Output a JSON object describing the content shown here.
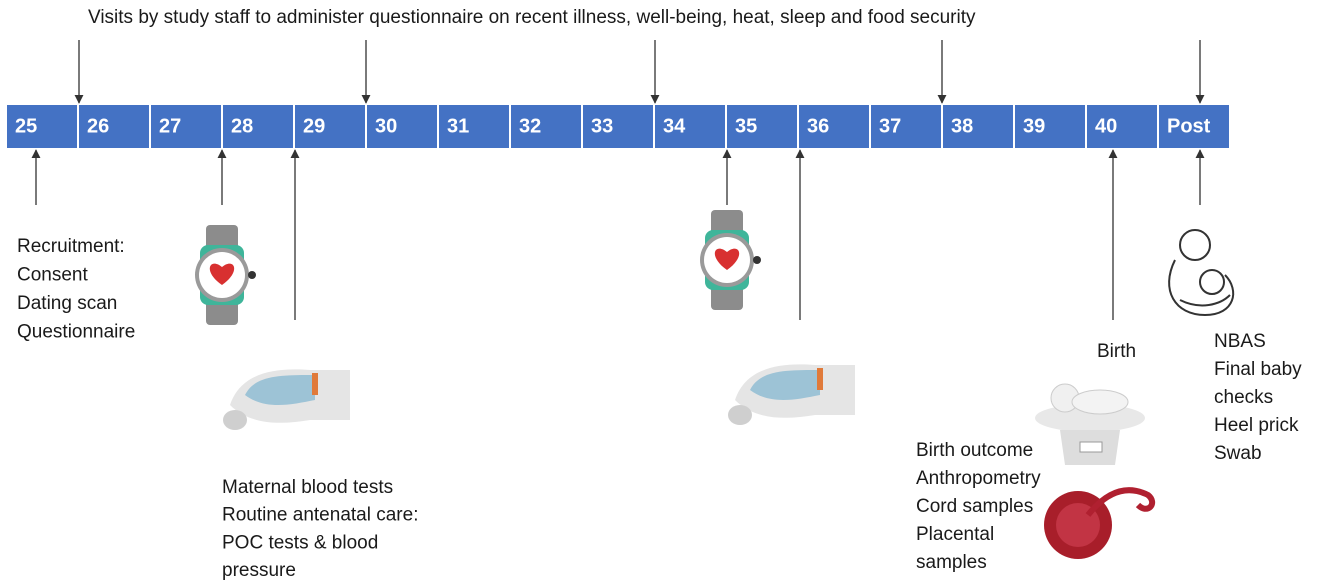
{
  "header": {
    "title": "Visits by study staff to administer questionnaire on recent illness, well-being, heat, sleep and food security"
  },
  "timeline": {
    "weeks": [
      "25",
      "26",
      "27",
      "28",
      "29",
      "30",
      "31",
      "32",
      "33",
      "34",
      "35",
      "36",
      "37",
      "38",
      "39",
      "40",
      "Post"
    ]
  },
  "annotations": {
    "recruitment": [
      "Recruitment:",
      "Consent",
      "Dating scan",
      "Questionnaire"
    ],
    "blood": [
      "Maternal blood tests",
      "Routine antenatal care:",
      "POC tests & blood",
      "pressure"
    ],
    "birth": [
      "Birth"
    ],
    "birth_outcome": [
      "Birth outcome",
      "Anthropometry",
      "Cord samples",
      "Placental",
      "samples"
    ],
    "postnatal": [
      "NBAS",
      "Final baby",
      "checks",
      "Heel prick",
      "Swab"
    ]
  }
}
